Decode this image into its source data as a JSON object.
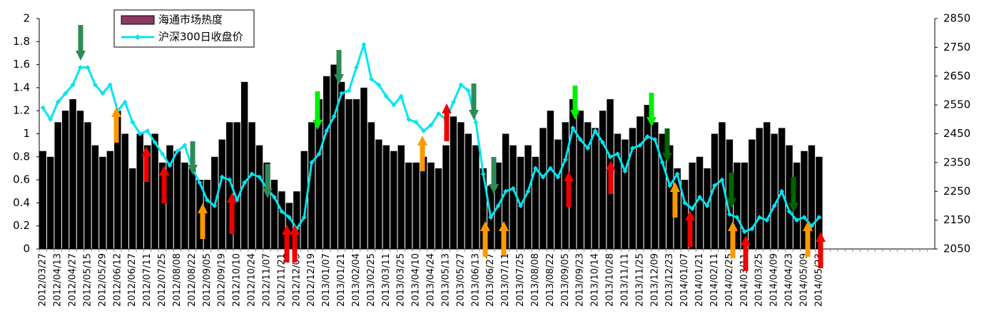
{
  "chart_data": {
    "type": "bar-line",
    "categories": [
      "2012/03/27",
      null,
      "2012/04/13",
      null,
      "2012/04/27",
      null,
      "2012/05/15",
      null,
      "2012/05/29",
      null,
      "2012/06/12",
      null,
      "2012/06/27",
      null,
      "2012/07/11",
      null,
      "2012/07/25",
      null,
      "2012/08/08",
      null,
      "2012/08/22",
      null,
      "2012/09/05",
      null,
      "2012/09/19",
      null,
      "2012/10/10",
      null,
      "2012/10/24",
      null,
      "2012/11/07",
      null,
      "2012/11/21",
      null,
      "2012/12/05",
      null,
      "2012/12/19",
      null,
      "2013/01/07",
      null,
      "2013/01/21",
      null,
      "2013/02/04",
      null,
      "2013/02/25",
      null,
      "2013/03/11",
      null,
      "2013/03/25",
      null,
      "2013/04/10",
      null,
      "2013/04/24",
      null,
      "2013/05/13",
      null,
      "2013/05/27",
      null,
      "2013/06/13",
      null,
      "2013/06/27",
      null,
      "2013/07/11",
      null,
      "2013/07/25",
      null,
      "2013/08/08",
      null,
      "2013/08/22",
      null,
      "2013/09/05",
      null,
      "2013/09/23",
      null,
      "2013/10/14",
      null,
      "2013/10/28",
      null,
      "2013/11/11",
      null,
      "2013/11/25",
      null,
      "2013/12/09",
      null,
      "2013/12/23",
      null,
      "2014/01/07",
      null,
      "2014/01/21",
      null,
      "2014/02/11",
      null,
      "2014/02/25",
      null,
      "2014/03/11",
      null,
      "2014/03/25",
      null,
      "2014/04/09",
      null,
      "2014/04/23",
      null,
      "2014/05/09",
      null,
      "2014/05/23",
      null,
      null,
      null,
      null,
      null,
      null,
      null,
      null,
      null,
      null,
      null,
      null,
      null,
      null,
      null
    ],
    "series": [
      {
        "name": "海通市场热度",
        "type": "bar",
        "color": "#000000",
        "swatch_color": "#8b3a62",
        "values": [
          0.85,
          0.8,
          1.1,
          1.2,
          1.3,
          1.2,
          1.1,
          0.9,
          0.8,
          0.85,
          1.2,
          1.0,
          0.7,
          1.0,
          0.9,
          1.0,
          0.75,
          0.9,
          0.85,
          0.75,
          0.7,
          0.6,
          0.6,
          0.8,
          0.95,
          1.1,
          1.1,
          1.45,
          1.1,
          0.9,
          0.75,
          0.6,
          0.5,
          0.4,
          0.5,
          0.85,
          1.1,
          1.3,
          1.5,
          1.6,
          1.45,
          1.3,
          1.3,
          1.4,
          1.1,
          0.95,
          0.9,
          0.85,
          0.9,
          0.75,
          0.75,
          0.8,
          0.75,
          0.7,
          0.9,
          1.15,
          1.1,
          1.0,
          0.9,
          0.7,
          0.55,
          0.75,
          1.0,
          0.9,
          0.8,
          0.9,
          0.8,
          1.05,
          1.2,
          0.95,
          1.1,
          1.3,
          1.2,
          1.1,
          1.05,
          1.2,
          1.3,
          1.0,
          0.95,
          1.05,
          1.15,
          1.25,
          1.1,
          1.0,
          0.9,
          0.7,
          0.6,
          0.75,
          0.8,
          0.7,
          1.0,
          1.1,
          0.95,
          0.75,
          0.75,
          0.95,
          1.05,
          1.1,
          1.0,
          1.05,
          0.9,
          0.75,
          0.85,
          0.9,
          0.8,
          null,
          null,
          null,
          null,
          null,
          null,
          null,
          null,
          null,
          null,
          null,
          null,
          null,
          null,
          null
        ]
      },
      {
        "name": "沪深300日收盘价",
        "type": "line",
        "axis": "y2",
        "color": "#00e5ee",
        "values": [
          2540,
          2500,
          2560,
          2590,
          2620,
          2680,
          2680,
          2620,
          2590,
          2620,
          2530,
          2560,
          2490,
          2450,
          2460,
          2420,
          2380,
          2340,
          2390,
          2410,
          2330,
          2280,
          2220,
          2200,
          2300,
          2290,
          2220,
          2280,
          2310,
          2300,
          2260,
          2230,
          2180,
          2160,
          2120,
          2160,
          2350,
          2380,
          2460,
          2510,
          2590,
          2600,
          2680,
          2760,
          2640,
          2620,
          2580,
          2550,
          2580,
          2500,
          2490,
          2460,
          2480,
          2520,
          2500,
          2560,
          2620,
          2600,
          2490,
          2310,
          2160,
          2200,
          2250,
          2260,
          2200,
          2250,
          2330,
          2300,
          2330,
          2300,
          2360,
          2470,
          2430,
          2400,
          2460,
          2420,
          2370,
          2380,
          2320,
          2400,
          2410,
          2440,
          2430,
          2350,
          2270,
          2310,
          2210,
          2190,
          2230,
          2200,
          2270,
          2290,
          2170,
          2160,
          2110,
          2120,
          2160,
          2150,
          2200,
          2250,
          2180,
          2150,
          2160,
          2130,
          2160,
          null,
          null,
          null,
          null,
          null,
          null,
          null,
          null,
          null,
          null,
          null,
          null,
          null,
          null,
          null
        ]
      }
    ],
    "ylim": [
      0,
      2
    ],
    "yticks": [
      0,
      0.2,
      0.4,
      0.6,
      0.8,
      1,
      1.2,
      1.4,
      1.6,
      1.8,
      2
    ],
    "y2lim": [
      2050,
      2850
    ],
    "y2ticks": [
      2050,
      2150,
      2250,
      2350,
      2450,
      2550,
      2650,
      2750,
      2850
    ]
  }
}
